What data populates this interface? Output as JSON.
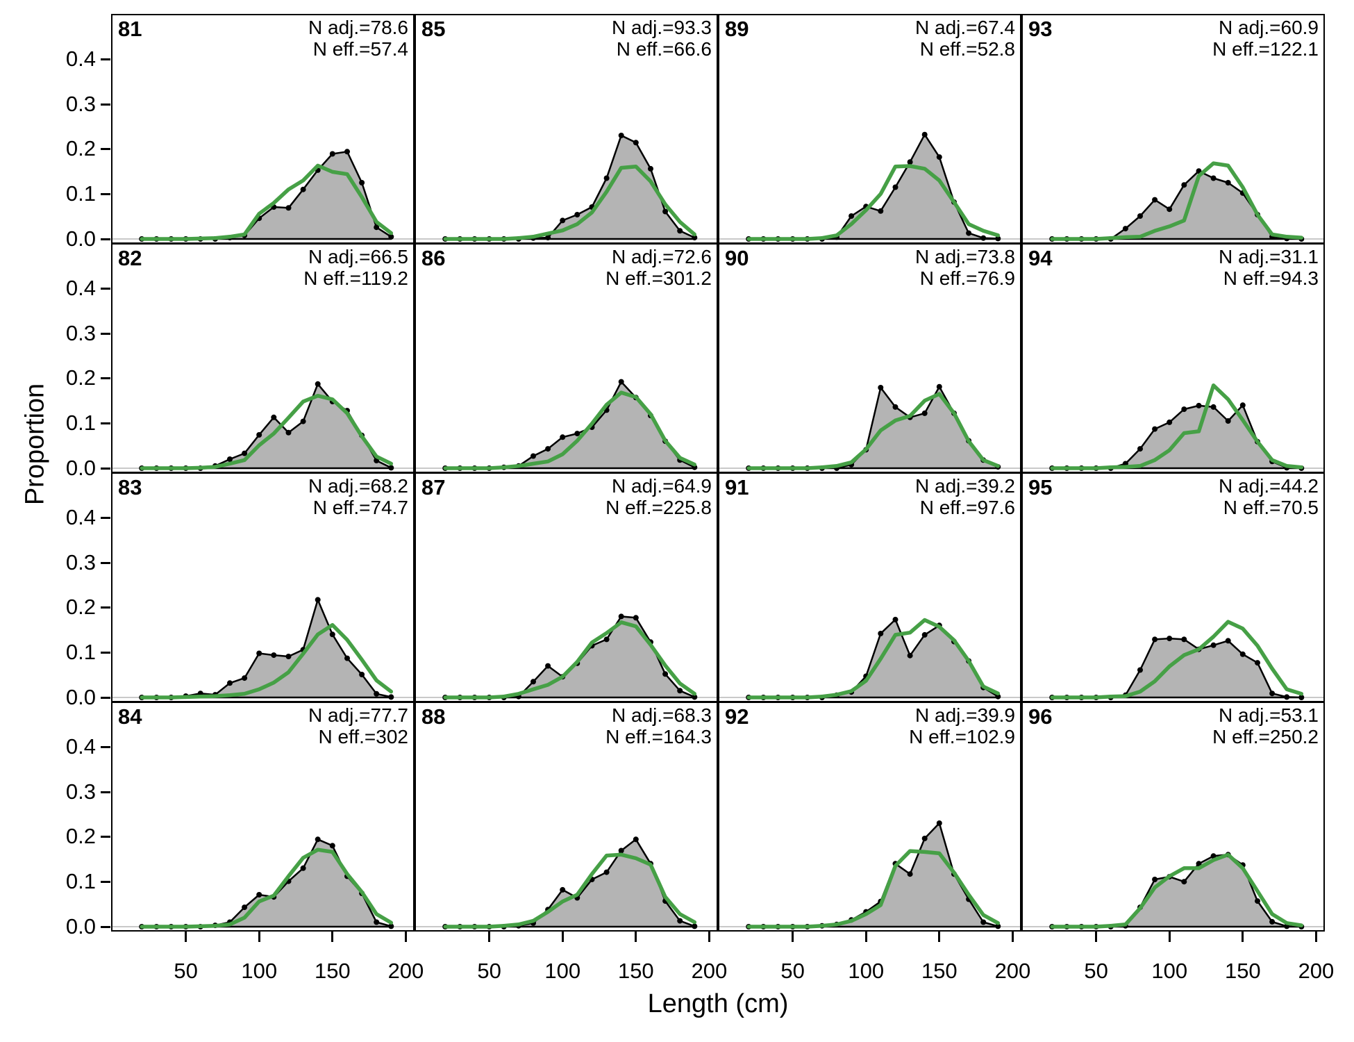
{
  "figure": {
    "y_tick_labels": [
      "0.0",
      "0.1",
      "0.2",
      "0.3",
      "0.4"
    ],
    "x_tick_labels": [
      "50",
      "100",
      "150",
      "200"
    ]
  },
  "chart_data": {
    "type": "area+line small-multiples (length-composition observed vs fitted)",
    "title": "",
    "xlabel": "Length (cm)",
    "ylabel": "Proportion",
    "x_label": "Length (cm)",
    "y_label": "Proportion",
    "xlim": [
      0,
      205
    ],
    "ylim": [
      0,
      0.5
    ],
    "x_ticks": [
      50,
      100,
      150,
      200
    ],
    "y_ticks": [
      0.0,
      0.1,
      0.2,
      0.3,
      0.4
    ],
    "grid": "off",
    "legend": "none",
    "annotation_prefixes": {
      "n_adj": "N adj.=",
      "n_eff": "N eff.="
    },
    "colors": {
      "observed_fill": "#b4b4b4",
      "observed_line": "#000000",
      "fit_line": "#46a046",
      "zero_line": "#c9c9c9",
      "panel_border": "#000000"
    },
    "x": [
      20,
      30,
      40,
      50,
      60,
      70,
      80,
      90,
      100,
      110,
      120,
      130,
      140,
      150,
      160,
      170,
      180,
      190
    ],
    "panels": [
      {
        "label": "81",
        "n_adj": "78.6",
        "n_eff": "57.4",
        "observed": [
          0,
          0,
          0,
          0,
          0,
          0,
          0.003,
          0.008,
          0.046,
          0.071,
          0.069,
          0.11,
          0.153,
          0.189,
          0.194,
          0.125,
          0.026,
          0.005
        ],
        "fit": [
          0,
          0,
          0,
          0,
          0.001,
          0.002,
          0.005,
          0.01,
          0.056,
          0.08,
          0.11,
          0.13,
          0.163,
          0.149,
          0.144,
          0.093,
          0.038,
          0.013
        ]
      },
      {
        "label": "85",
        "n_adj": "93.3",
        "n_eff": "66.6",
        "observed": [
          0,
          0,
          0,
          0,
          0,
          0,
          0.002,
          0.003,
          0.041,
          0.054,
          0.071,
          0.135,
          0.23,
          0.214,
          0.156,
          0.061,
          0.018,
          0.003
        ],
        "fit": [
          0,
          0,
          0,
          0,
          0,
          0.002,
          0.005,
          0.012,
          0.019,
          0.033,
          0.059,
          0.105,
          0.158,
          0.161,
          0.128,
          0.077,
          0.038,
          0.01
        ]
      },
      {
        "label": "89",
        "n_adj": "67.4",
        "n_eff": "52.8",
        "observed": [
          0,
          0,
          0,
          0,
          0,
          0,
          0.004,
          0.051,
          0.072,
          0.062,
          0.115,
          0.171,
          0.232,
          0.182,
          0.082,
          0.013,
          0.002,
          0.001
        ],
        "fit": [
          0,
          0,
          0,
          0,
          0,
          0.002,
          0.008,
          0.033,
          0.064,
          0.1,
          0.161,
          0.162,
          0.156,
          0.13,
          0.082,
          0.033,
          0.018,
          0.008
        ]
      },
      {
        "label": "93",
        "n_adj": "60.9",
        "n_eff": "122.1",
        "observed": [
          0,
          0,
          0,
          0,
          0,
          0.023,
          0.051,
          0.087,
          0.066,
          0.12,
          0.151,
          0.135,
          0.125,
          0.102,
          0.054,
          0.005,
          0.001,
          0
        ],
        "fit": [
          0,
          0,
          0,
          0,
          0.002,
          0.004,
          0.005,
          0.018,
          0.028,
          0.041,
          0.14,
          0.168,
          0.163,
          0.115,
          0.054,
          0.01,
          0.005,
          0.003
        ]
      },
      {
        "label": "82",
        "n_adj": "66.5",
        "n_eff": "119.2",
        "observed": [
          0,
          0,
          0,
          0,
          0,
          0.005,
          0.02,
          0.033,
          0.074,
          0.113,
          0.079,
          0.104,
          0.187,
          0.148,
          0.128,
          0.073,
          0.017,
          0.001
        ],
        "fit": [
          0,
          0,
          0,
          0,
          0.001,
          0.003,
          0.01,
          0.018,
          0.051,
          0.077,
          0.112,
          0.148,
          0.161,
          0.153,
          0.122,
          0.071,
          0.026,
          0.01
        ]
      },
      {
        "label": "86",
        "n_adj": "72.6",
        "n_eff": "301.2",
        "observed": [
          0,
          0,
          0,
          0,
          0.002,
          0.005,
          0.027,
          0.043,
          0.069,
          0.077,
          0.091,
          0.129,
          0.192,
          0.157,
          0.117,
          0.06,
          0.018,
          0.002
        ],
        "fit": [
          0,
          0,
          0,
          0,
          0.002,
          0.005,
          0.01,
          0.015,
          0.031,
          0.061,
          0.099,
          0.141,
          0.168,
          0.158,
          0.12,
          0.061,
          0.023,
          0.008
        ]
      },
      {
        "label": "90",
        "n_adj": "73.8",
        "n_eff": "76.9",
        "observed": [
          0,
          0,
          0,
          0,
          0,
          0,
          0,
          0.008,
          0.041,
          0.179,
          0.136,
          0.113,
          0.122,
          0.181,
          0.122,
          0.061,
          0.018,
          0.003
        ],
        "fit": [
          0,
          0,
          0,
          0,
          0,
          0.002,
          0.005,
          0.013,
          0.042,
          0.084,
          0.106,
          0.116,
          0.15,
          0.165,
          0.122,
          0.06,
          0.018,
          0.005
        ]
      },
      {
        "label": "94",
        "n_adj": "31.1",
        "n_eff": "94.3",
        "observed": [
          0,
          0,
          0,
          0,
          0,
          0.01,
          0.043,
          0.087,
          0.102,
          0.131,
          0.139,
          0.136,
          0.105,
          0.14,
          0.059,
          0.015,
          0.001,
          0
        ],
        "fit": [
          0,
          0,
          0,
          0,
          0.002,
          0.003,
          0.005,
          0.018,
          0.04,
          0.078,
          0.082,
          0.184,
          0.153,
          0.107,
          0.059,
          0.018,
          0.005,
          0.002
        ]
      },
      {
        "label": "83",
        "n_adj": "68.2",
        "n_eff": "74.7",
        "observed": [
          0,
          0,
          0,
          0.003,
          0.009,
          0.006,
          0.032,
          0.043,
          0.098,
          0.094,
          0.091,
          0.106,
          0.217,
          0.14,
          0.087,
          0.051,
          0.008,
          0.001
        ],
        "fit": [
          0,
          0,
          0,
          0.001,
          0.002,
          0.003,
          0.005,
          0.008,
          0.018,
          0.033,
          0.056,
          0.097,
          0.14,
          0.161,
          0.128,
          0.084,
          0.038,
          0.013
        ]
      },
      {
        "label": "87",
        "n_adj": "64.9",
        "n_eff": "225.8",
        "observed": [
          0,
          0,
          0,
          0,
          0,
          0.002,
          0.035,
          0.07,
          0.046,
          0.076,
          0.115,
          0.129,
          0.18,
          0.177,
          0.123,
          0.052,
          0.015,
          0.001
        ],
        "fit": [
          0,
          0,
          0,
          0,
          0.002,
          0.008,
          0.018,
          0.028,
          0.046,
          0.079,
          0.122,
          0.143,
          0.167,
          0.158,
          0.117,
          0.071,
          0.031,
          0.008
        ]
      },
      {
        "label": "91",
        "n_adj": "39.2",
        "n_eff": "97.6",
        "observed": [
          0,
          0,
          0,
          0,
          0,
          0,
          0.005,
          0.012,
          0.047,
          0.142,
          0.173,
          0.093,
          0.139,
          0.16,
          0.124,
          0.081,
          0.022,
          0.002
        ],
        "fit": [
          0,
          0,
          0,
          0,
          0,
          0.002,
          0.006,
          0.014,
          0.037,
          0.086,
          0.139,
          0.144,
          0.172,
          0.157,
          0.127,
          0.081,
          0.024,
          0.009
        ]
      },
      {
        "label": "95",
        "n_adj": "44.2",
        "n_eff": "70.5",
        "observed": [
          0,
          0,
          0,
          0,
          0,
          0.005,
          0.061,
          0.129,
          0.131,
          0.129,
          0.107,
          0.116,
          0.126,
          0.096,
          0.077,
          0.009,
          0.001,
          0
        ],
        "fit": [
          0,
          0,
          0,
          0,
          0.002,
          0.003,
          0.013,
          0.036,
          0.069,
          0.094,
          0.107,
          0.135,
          0.168,
          0.153,
          0.115,
          0.064,
          0.018,
          0.008
        ]
      },
      {
        "label": "84",
        "n_adj": "77.7",
        "n_eff": "302",
        "observed": [
          0,
          0,
          0,
          0,
          0,
          0.003,
          0.01,
          0.043,
          0.071,
          0.066,
          0.101,
          0.13,
          0.194,
          0.18,
          0.112,
          0.074,
          0.01,
          0.001
        ],
        "fit": [
          0,
          0,
          0,
          0,
          0.001,
          0.002,
          0.005,
          0.02,
          0.056,
          0.069,
          0.112,
          0.153,
          0.171,
          0.166,
          0.117,
          0.077,
          0.028,
          0.009
        ]
      },
      {
        "label": "88",
        "n_adj": "68.3",
        "n_eff": "164.3",
        "observed": [
          0,
          0,
          0,
          0,
          0,
          0.002,
          0.008,
          0.038,
          0.082,
          0.064,
          0.105,
          0.121,
          0.169,
          0.194,
          0.14,
          0.057,
          0.013,
          0.001
        ],
        "fit": [
          0,
          0,
          0,
          0,
          0.002,
          0.005,
          0.013,
          0.033,
          0.056,
          0.071,
          0.117,
          0.158,
          0.16,
          0.152,
          0.138,
          0.066,
          0.028,
          0.01
        ]
      },
      {
        "label": "92",
        "n_adj": "39.9",
        "n_eff": "102.9",
        "observed": [
          0,
          0,
          0,
          0,
          0,
          0.002,
          0.005,
          0.015,
          0.033,
          0.056,
          0.14,
          0.117,
          0.196,
          0.23,
          0.117,
          0.061,
          0.01,
          0.001
        ],
        "fit": [
          0,
          0,
          0,
          0,
          0,
          0.002,
          0.005,
          0.013,
          0.028,
          0.048,
          0.135,
          0.168,
          0.166,
          0.163,
          0.12,
          0.071,
          0.026,
          0.008
        ]
      },
      {
        "label": "96",
        "n_adj": "53.1",
        "n_eff": "250.2",
        "observed": [
          0,
          0,
          0,
          0,
          0,
          0.002,
          0.043,
          0.105,
          0.111,
          0.1,
          0.14,
          0.157,
          0.16,
          0.137,
          0.057,
          0.011,
          0.001,
          0
        ],
        "fit": [
          0,
          0,
          0,
          0,
          0.002,
          0.005,
          0.041,
          0.087,
          0.112,
          0.13,
          0.13,
          0.148,
          0.16,
          0.13,
          0.079,
          0.028,
          0.008,
          0.003
        ]
      }
    ]
  }
}
